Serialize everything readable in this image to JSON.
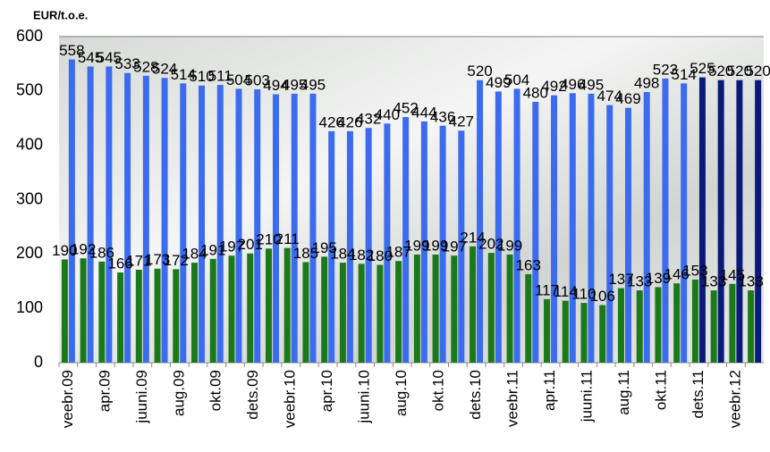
{
  "chart_data": {
    "type": "bar",
    "title": "EUR/t.o.e.",
    "categories": [
      "veebr.09",
      null,
      "apr.09",
      null,
      "juuni.09",
      null,
      "aug.09",
      null,
      "okt.09",
      null,
      "dets.09",
      null,
      "veebr.10",
      null,
      "apr.10",
      null,
      "juuni.10",
      null,
      "aug.10",
      null,
      "okt.10",
      null,
      "dets.10",
      null,
      "veebr.11",
      null,
      "apr.11",
      null,
      "juuni.11",
      null,
      "aug.11",
      null,
      "okt.11",
      null,
      "dets.11",
      null,
      "veebr.12",
      null
    ],
    "series": [
      {
        "color": "#3b6cf0",
        "colors": [
          "#3b6cf0",
          "#3b6cf0",
          "#3b6cf0",
          "#3b6cf0",
          "#3b6cf0",
          "#3b6cf0",
          "#3b6cf0",
          "#3b6cf0",
          "#3b6cf0",
          "#3b6cf0",
          "#3b6cf0",
          "#3b6cf0",
          "#3b6cf0",
          "#3b6cf0",
          "#3b6cf0",
          "#3b6cf0",
          "#3b6cf0",
          "#3b6cf0",
          "#3b6cf0",
          "#3b6cf0",
          "#3b6cf0",
          "#3b6cf0",
          "#3b6cf0",
          "#3b6cf0",
          "#3b6cf0",
          "#3b6cf0",
          "#3b6cf0",
          "#3b6cf0",
          "#3b6cf0",
          "#3b6cf0",
          "#3b6cf0",
          "#3b6cf0",
          "#3b6cf0",
          "#3b6cf0",
          "#0a1a7a",
          "#0a1a7a",
          "#0a1a7a",
          "#0a1a7a"
        ],
        "values": [
          558,
          545,
          545,
          533,
          528,
          524,
          514,
          510,
          511,
          504,
          503,
          494,
          495,
          495,
          426,
          426,
          432,
          440,
          452,
          444,
          436,
          427,
          520,
          499,
          504,
          480,
          492,
          496,
          495,
          474,
          469,
          498,
          523,
          514,
          525,
          520,
          520,
          520
        ]
      },
      {
        "color": "#1a7a1a",
        "values": [
          190,
          192,
          186,
          166,
          171,
          173,
          172,
          184,
          191,
          197,
          201,
          210,
          211,
          185,
          195,
          184,
          182,
          180,
          187,
          199,
          199,
          197,
          214,
          202,
          199,
          163,
          117,
          114,
          110,
          106,
          137,
          133,
          139,
          146,
          153,
          133,
          145,
          133
        ]
      }
    ],
    "ylim": [
      0,
      600
    ],
    "yticks": [
      0,
      100,
      200,
      300,
      400,
      500,
      600
    ],
    "grid": false
  }
}
